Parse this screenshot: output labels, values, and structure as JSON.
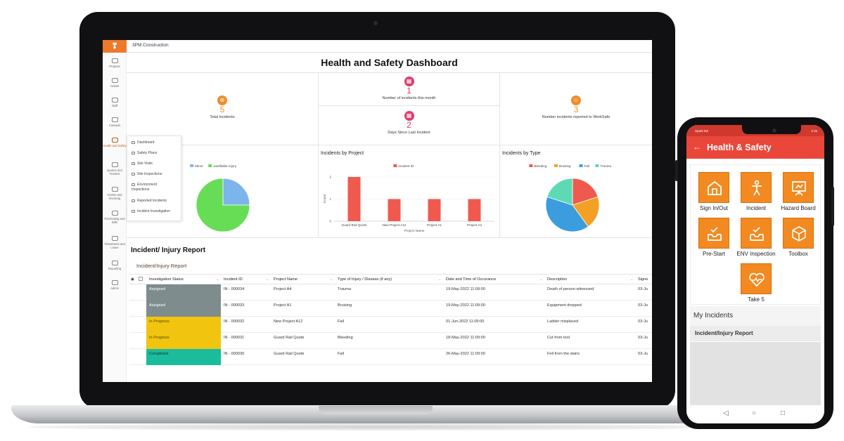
{
  "laptop": {
    "org_name": "3PM Construction",
    "logo_glyph": "❣",
    "rail": [
      {
        "label": "Projects",
        "icon": "projects-icon"
      },
      {
        "label": "Assets",
        "icon": "assets-icon"
      },
      {
        "label": "Staff",
        "icon": "staff-icon"
      },
      {
        "label": "Contacts",
        "icon": "contacts-icon"
      },
      {
        "label": "Health and Safety",
        "icon": "health-safety-icon"
      },
      {
        "label": "Quotes and Tenders",
        "icon": "quotes-icon"
      },
      {
        "label": "Claims and Invoicing",
        "icon": "claims-icon"
      },
      {
        "label": "Purchasing and Bills",
        "icon": "purchasing-icon"
      },
      {
        "label": "Timesheets and Leave",
        "icon": "timesheets-icon"
      },
      {
        "label": "Reporting",
        "icon": "reporting-icon"
      },
      {
        "label": "Admin",
        "icon": "admin-icon"
      }
    ],
    "submenu": [
      "Dashboard",
      "Safety Plans",
      "Site Visits",
      "Site Inspections",
      "Environment Inspections",
      "Reported Incidents",
      "Incident Investigation"
    ],
    "dashboard": {
      "title": "Health and Safety Dashboard",
      "kpis": {
        "total_incidents": {
          "value": "5",
          "label": "Total Incidents"
        },
        "incidents_this_month": {
          "value": "1",
          "label": "Number of incidents this month"
        },
        "days_since_last": {
          "value": "2",
          "label": "Days Since Last Incident"
        },
        "reported_worksafe": {
          "value": "3",
          "label": "Number incidents reported to WorkSafe"
        }
      },
      "colors": {
        "kpi_orange": "#f08c2c",
        "kpi_pink": "#e23a6c"
      }
    },
    "chart_data": [
      {
        "type": "pie",
        "title": "",
        "legend": [
          "Minor",
          "Justifiable Injury"
        ],
        "values": [
          1,
          3
        ],
        "colors": [
          "#7cb5ec",
          "#66dd55"
        ]
      },
      {
        "type": "bar",
        "title": "Incidents by Project",
        "legend": [
          "Incident ID"
        ],
        "categories": [
          "Guard Rail Quote",
          "New Project A12",
          "Project A1",
          "Project A4"
        ],
        "values": [
          2,
          1,
          1,
          1
        ],
        "xlabel": "Project Name",
        "ylabel": "Count",
        "ylim": [
          0,
          2
        ],
        "yticks": [
          "0",
          "1",
          "2"
        ],
        "color": "#f05a4e"
      },
      {
        "type": "pie",
        "title": "Incidents by Type",
        "legend": [
          "Bleeding",
          "Bruising",
          "Fall",
          "Trauma"
        ],
        "values": [
          1,
          1,
          2,
          1
        ],
        "colors": [
          "#f05a4e",
          "#f4a024",
          "#3b9ddd",
          "#5ddab4"
        ]
      }
    ],
    "report": {
      "title": "Incident/ Injury Report",
      "subtitle": "Incident/Injury Report",
      "columns": [
        "Investigation Status",
        "Incident ID",
        "Project Name",
        "Type of Injury / Disease (if any)",
        "Date and Time of Occurance",
        "Description",
        "Signe"
      ],
      "rows": [
        {
          "status": "Assigned",
          "status_class": "st-assigned",
          "id": "IN - 000034",
          "project": "Project A4",
          "type": "Trauma",
          "date": "19-May-2022 11:09:00",
          "desc": "Death of person witnessed",
          "signed": "03-Ju"
        },
        {
          "status": "Assigned",
          "status_class": "st-assigned",
          "id": "IN - 000033",
          "project": "Project A1",
          "type": "Bruising",
          "date": "19-May-2022 11:09:00",
          "desc": "Equipment dropped",
          "signed": "03-Ju"
        },
        {
          "status": "In Progress",
          "status_class": "st-progress",
          "id": "IN - 000032",
          "project": "New Project A12",
          "type": "Fall",
          "date": "01-Jun-2022 11:09:00",
          "desc": "Ladder misplaced",
          "signed": "03-Ju"
        },
        {
          "status": "In Progress",
          "status_class": "st-progress",
          "id": "IN - 000031",
          "project": "Guard Rail Quote",
          "type": "Bleeding",
          "date": "18-May-2022 11:09:00",
          "desc": "Cut from tool",
          "signed": "03-Ju"
        },
        {
          "status": "Completed",
          "status_class": "st-completed",
          "id": "IN - 000030",
          "project": "Guard Rail Quote",
          "type": "Fall",
          "date": "26-May-2022 11:09:00",
          "desc": "Fell from the stairs",
          "signed": "03-Ju"
        }
      ]
    }
  },
  "phone": {
    "carrier": "Spark NZ",
    "time": "2:15",
    "app_title": "Health & Safety",
    "back_glyph": "←",
    "tiles": [
      {
        "label": "Sign In/Out",
        "icon": "sign-in-out-icon"
      },
      {
        "label": "Incident",
        "icon": "incident-icon"
      },
      {
        "label": "Hazard Board",
        "icon": "hazard-board-icon"
      },
      {
        "label": "Pre-Start",
        "icon": "pre-start-icon"
      },
      {
        "label": "ENV Inspection",
        "icon": "env-inspection-icon"
      },
      {
        "label": "Toolbox",
        "icon": "toolbox-icon"
      },
      {
        "label": "Take 5",
        "icon": "take5-icon"
      }
    ],
    "my_incidents": "My Incidents",
    "incident_report": "Incident/Injury Report",
    "nav": {
      "back": "◁",
      "home": "○",
      "recents": "□"
    },
    "colors": {
      "app_bar": "#e8473a",
      "tile": "#f28a21"
    }
  }
}
